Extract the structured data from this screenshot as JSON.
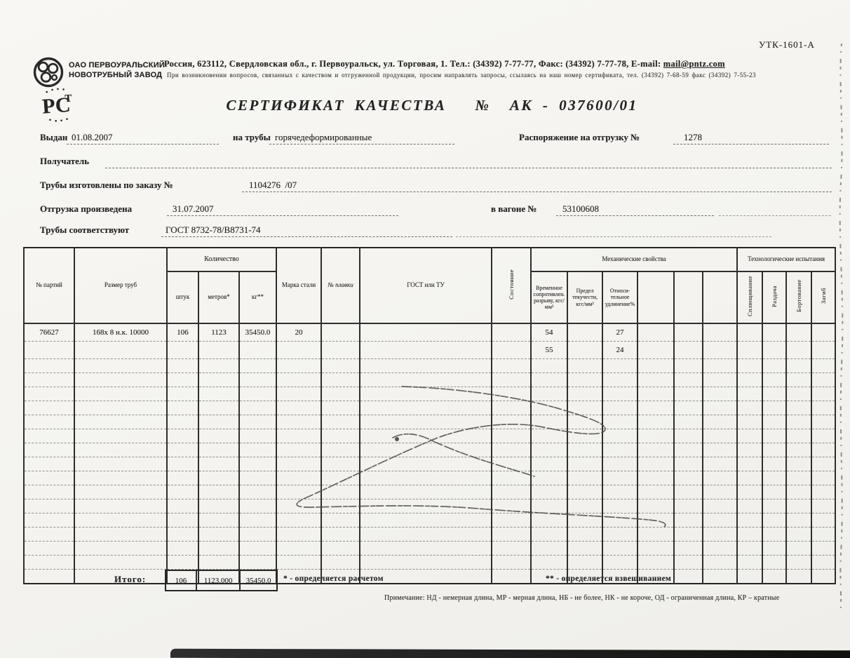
{
  "page": {
    "form_code": "УТК-1601-А",
    "title": "СЕРТИФИКАТ КАЧЕСТВА   №  АК - 037600/01"
  },
  "company": {
    "name_line1": "ОАО ПЕРВОУРАЛЬСКИЙ",
    "name_line2": "НОВОТРУБНЫЙ ЗАВОД",
    "address_prefix": "Россия, 623112, Свердловская обл., г. Первоуральск, ул. Торговая, 1. Тел.: (34392) 7-77-77, Факс: (34392) 7-77-78, E-mail: ",
    "email": "mail@pntz.com",
    "notice_line": "При возникновении вопросов, связанных с качеством и отгруженной продукции, просим направлять запросы, ссылаясь на наш номер сертификата, тел. (34392) 7-68-59 факс (34392) 7-55-23",
    "cert_mark": "РСТ"
  },
  "fields": {
    "issued_label": "Выдан",
    "issued_value": "01.08.2007",
    "pipes_label": "на трубы",
    "pipes_value": "горячедеформированные",
    "shipment_order_label": "Распоряжение на отгрузку №",
    "shipment_order_value": "1278",
    "receiver_label": "Получатель",
    "made_to_order_label": "Трубы изготовлены по заказу №",
    "made_to_order_value": "1104276  /07",
    "shipped_label": "Отгрузка произведена",
    "shipped_value": "31.07.2007",
    "wagon_label": "в вагоне №",
    "wagon_value": "53100608",
    "standard_label": "Трубы соответствуют",
    "standard_value": "ГОСТ 8732-78/В8731-74"
  },
  "table": {
    "group_quantity": "Количество",
    "group_mech": "Механические свойства",
    "group_tech": "Технологические испытания",
    "head": {
      "party_no": "№ партий",
      "size": "Размер труб",
      "pieces": "штук",
      "meters": "метров*",
      "kg": "кг**",
      "steel_grade": "Марка стали",
      "melt_no": "№ плавки",
      "gost": "ГОСТ или ТУ",
      "condition": "Состояние",
      "tensile": "Времен­ное сопротивлен. разрыву, кгс/мм²",
      "yield": "Предел текуче­сти, кгс/мм²",
      "elongation": "Относи­тельное удлине­ние%",
      "flattening": "Сплющи­вание",
      "expansion": "Раздача",
      "flanging": "Бортова­ние",
      "bend": "Загиб"
    },
    "row1": {
      "party_no": "76627",
      "size": "168х 8 н.к. 10000",
      "pieces": "106",
      "meters": "1123",
      "kg": "35450.0",
      "steel_grade": "20",
      "tensile": "54",
      "elongation": "27"
    },
    "row2": {
      "tensile": "55",
      "elongation": "24"
    },
    "empty_row_count": 16,
    "column_count": 19
  },
  "totals": {
    "label": "Итого:",
    "pieces": "106",
    "meters": "1123.000",
    "kg": "35450.0"
  },
  "footnotes": {
    "star": "* - определяется расчетом",
    "double_star": "** - определяется взвешиванием",
    "note": "Примечание: НД - немерная длина, МР - мерная длина, НБ - не более, НК - не короче, ОД - ограниченная длина, КР – кратные"
  },
  "colors": {
    "ink": "#232323",
    "paper": "#f5f4f0",
    "table_line": "#2e2e2e"
  }
}
